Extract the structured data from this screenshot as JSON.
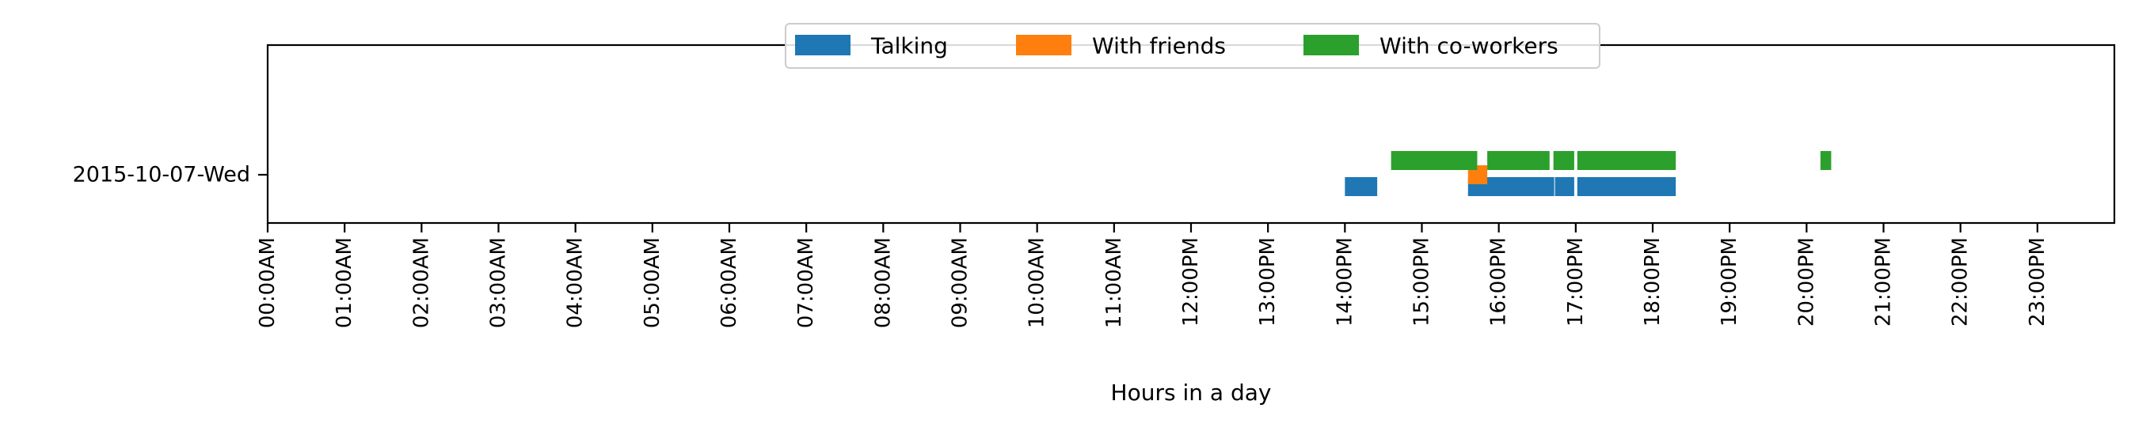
{
  "chart_data": {
    "type": "timeline",
    "xlabel": "Hours in a day",
    "ylabel": "",
    "xlim": [
      0,
      24
    ],
    "rows": [
      "2015-10-07-Wed"
    ],
    "x_ticks": [
      {
        "value": 0,
        "label": "00:00AM"
      },
      {
        "value": 1,
        "label": "01:00AM"
      },
      {
        "value": 2,
        "label": "02:00AM"
      },
      {
        "value": 3,
        "label": "03:00AM"
      },
      {
        "value": 4,
        "label": "04:00AM"
      },
      {
        "value": 5,
        "label": "05:00AM"
      },
      {
        "value": 6,
        "label": "06:00AM"
      },
      {
        "value": 7,
        "label": "07:00AM"
      },
      {
        "value": 8,
        "label": "08:00AM"
      },
      {
        "value": 9,
        "label": "09:00AM"
      },
      {
        "value": 10,
        "label": "10:00AM"
      },
      {
        "value": 11,
        "label": "11:00AM"
      },
      {
        "value": 12,
        "label": "12:00PM"
      },
      {
        "value": 13,
        "label": "13:00PM"
      },
      {
        "value": 14,
        "label": "14:00PM"
      },
      {
        "value": 15,
        "label": "15:00PM"
      },
      {
        "value": 16,
        "label": "16:00PM"
      },
      {
        "value": 17,
        "label": "17:00PM"
      },
      {
        "value": 18,
        "label": "18:00PM"
      },
      {
        "value": 19,
        "label": "19:00PM"
      },
      {
        "value": 20,
        "label": "20:00PM"
      },
      {
        "value": 21,
        "label": "21:00PM"
      },
      {
        "value": 22,
        "label": "22:00PM"
      },
      {
        "value": 23,
        "label": "23:00PM"
      }
    ],
    "legend": {
      "placement": "upper-center"
    },
    "series": [
      {
        "name": "Talking",
        "color": "#1f77b4",
        "intervals": [
          [
            14.0,
            14.42
          ],
          [
            15.6,
            16.72
          ],
          [
            16.73,
            16.98
          ],
          [
            17.02,
            18.3
          ]
        ]
      },
      {
        "name": "With friends",
        "color": "#ff7f0e",
        "intervals": [
          [
            15.6,
            15.85
          ]
        ]
      },
      {
        "name": "With co-workers",
        "color": "#2ca02c",
        "intervals": [
          [
            14.6,
            15.72
          ],
          [
            15.85,
            16.66
          ],
          [
            16.71,
            16.98
          ],
          [
            17.02,
            18.3
          ],
          [
            20.18,
            20.32
          ]
        ]
      }
    ]
  }
}
